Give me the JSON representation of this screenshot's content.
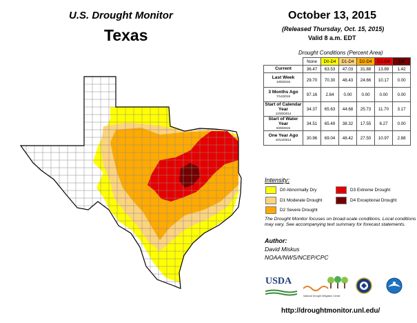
{
  "header": {
    "monitor": "U.S. Drought Monitor",
    "state": "Texas",
    "date": "October 13, 2015",
    "released": "(Released Thursday, Oct. 15, 2015)",
    "valid": "Valid 8 a.m. EDT"
  },
  "table": {
    "caption": "Drought Conditions (Percent Area)",
    "columns": [
      {
        "label": "None",
        "color": "#ffffff"
      },
      {
        "label": "D0-D4",
        "color": "#ffff00"
      },
      {
        "label": "D1-D4",
        "color": "#fcd37f"
      },
      {
        "label": "D2-D4",
        "color": "#ffaa00"
      },
      {
        "label": "D3-D4",
        "color": "#e60000"
      },
      {
        "label": "D4",
        "color": "#730000"
      }
    ],
    "rows": [
      {
        "label": "Current",
        "date": "",
        "values": [
          "36.47",
          "63.53",
          "47.03",
          "31.88",
          "13.89",
          "1.42"
        ]
      },
      {
        "label": "Last Week",
        "date": "10/6/2015",
        "values": [
          "29.70",
          "70.30",
          "48.43",
          "24.66",
          "10.17",
          "0.00"
        ]
      },
      {
        "label": "3 Months Ago",
        "date": "7/14/2015",
        "values": [
          "97.16",
          "2.84",
          "0.00",
          "0.00",
          "0.00",
          "0.00"
        ]
      },
      {
        "label": "Start of Calendar Year",
        "date": "12/30/2014",
        "values": [
          "34.37",
          "65.63",
          "44.68",
          "25.73",
          "11.70",
          "3.17"
        ]
      },
      {
        "label": "Start of Water Year",
        "date": "9/29/2015",
        "values": [
          "34.51",
          "65.49",
          "38.32",
          "17.55",
          "6.27",
          "0.00"
        ]
      },
      {
        "label": "One Year Ago",
        "date": "10/14/2014",
        "values": [
          "30.96",
          "69.04",
          "48.42",
          "27.50",
          "10.97",
          "2.88"
        ]
      }
    ]
  },
  "legend": {
    "title": "Intensity:",
    "items": [
      {
        "label": "D0 Abnormally Dry",
        "color": "#ffff00"
      },
      {
        "label": "D3 Extreme Drought",
        "color": "#e60000"
      },
      {
        "label": "D1 Moderate Drought",
        "color": "#fcd37f"
      },
      {
        "label": "D4 Exceptional Drought",
        "color": "#730000"
      },
      {
        "label": "D2 Severe Drought",
        "color": "#ffaa00"
      }
    ]
  },
  "note": "The Drought Monitor focuses on broad-scale conditions. Local conditions may vary. See accompanying text summary for forecast statements.",
  "author": {
    "title": "Author:",
    "name": "David Miskus",
    "org": "NOAA/NWS/NCEP/CPC"
  },
  "logos": {
    "usda": "USDA",
    "ndmc": "National Drought Mitigation Center"
  },
  "url": "http://droughtmonitor.unl.edu/"
}
